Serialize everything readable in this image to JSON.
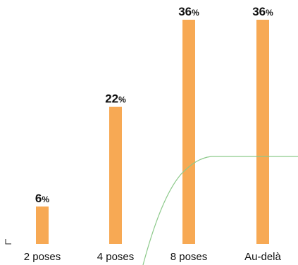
{
  "chart_data": {
    "type": "bar",
    "categories": [
      "2 poses",
      "4 poses",
      "8 poses",
      "Au-delà"
    ],
    "values": [
      6,
      22,
      36,
      36
    ],
    "value_suffix": "%",
    "ylim": [
      0,
      36
    ],
    "grid": false,
    "title": "",
    "xlabel": "",
    "ylabel": "",
    "colors": {
      "bar": "#f7a954",
      "curve": "#8cc98a",
      "text": "#111111"
    },
    "curve_description": "decorative green sigmoid line"
  }
}
